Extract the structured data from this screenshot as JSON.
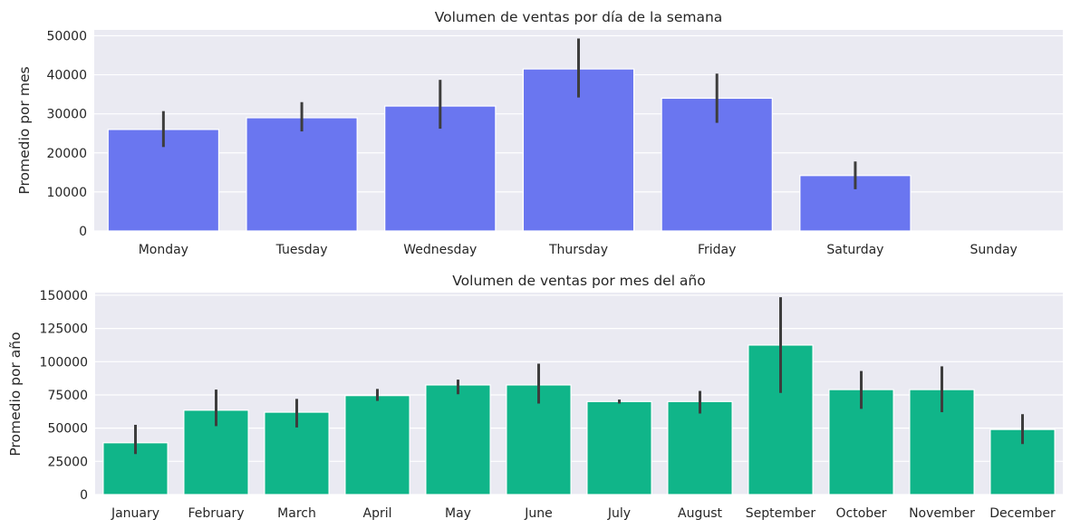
{
  "chart_data": [
    {
      "type": "bar",
      "title": "Volumen de ventas por día de la semana",
      "xlabel": "",
      "ylabel": "Promedio por mes",
      "ylim": [
        0,
        51500
      ],
      "yticks": [
        0,
        10000,
        20000,
        30000,
        40000,
        50000
      ],
      "bar_color": "#6a76f0",
      "error_color": "#3d3d3d",
      "background": "#eaeaf2",
      "categories": [
        "Monday",
        "Tuesday",
        "Wednesday",
        "Thursday",
        "Friday",
        "Saturday",
        "Sunday"
      ],
      "values": [
        26000,
        29000,
        32000,
        41500,
        34000,
        14200,
        0
      ],
      "ci_low": [
        21500,
        25500,
        26200,
        34200,
        27700,
        10700,
        null
      ],
      "ci_high": [
        30700,
        33000,
        38700,
        49300,
        40300,
        17800,
        null
      ]
    },
    {
      "type": "bar",
      "title": "Volumen de ventas por mes del año",
      "xlabel": "",
      "ylabel": "Promedio por año",
      "ylim": [
        0,
        152000
      ],
      "yticks": [
        0,
        25000,
        50000,
        75000,
        100000,
        125000,
        150000
      ],
      "bar_color": "#10b589",
      "error_color": "#3d3d3d",
      "background": "#eaeaf2",
      "categories": [
        "January",
        "February",
        "March",
        "April",
        "May",
        "June",
        "July",
        "August",
        "September",
        "October",
        "November",
        "December"
      ],
      "values": [
        39000,
        63500,
        62000,
        74500,
        82500,
        82500,
        70000,
        70000,
        112500,
        79000,
        79000,
        49000
      ],
      "ci_low": [
        30500,
        51500,
        50500,
        70500,
        75500,
        68500,
        68500,
        61000,
        76500,
        64500,
        62000,
        38000
      ],
      "ci_high": [
        52500,
        79000,
        72000,
        79500,
        86500,
        98500,
        71500,
        78000,
        148500,
        93000,
        96500,
        60500
      ]
    }
  ]
}
